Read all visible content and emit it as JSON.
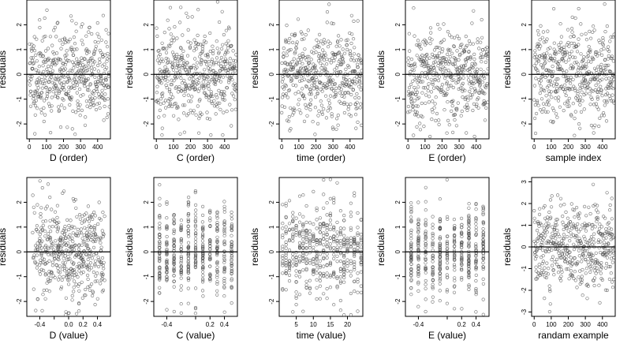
{
  "colors": {
    "points": "#555555",
    "frame": "#000000",
    "zero_line": "#000000"
  },
  "chart_data": [
    {
      "type": "scatter",
      "xlabel": "D (order)",
      "ylabel": "residuals",
      "xticks": [
        0,
        100,
        200,
        300,
        400
      ],
      "xlim": [
        -15,
        475
      ],
      "yticks": [
        -2,
        -1,
        0,
        1,
        2
      ],
      "ylim": [
        -2.6,
        3.0
      ],
      "zero_line": true,
      "n_points": 470,
      "x_kind": "index",
      "seed": 11,
      "sd": 0.95
    },
    {
      "type": "scatter",
      "xlabel": "C (order)",
      "ylabel": "residuals",
      "xticks": [
        0,
        100,
        200,
        300,
        400
      ],
      "xlim": [
        -15,
        475
      ],
      "yticks": [
        -2,
        -1,
        0,
        1,
        2
      ],
      "ylim": [
        -2.6,
        3.0
      ],
      "zero_line": true,
      "n_points": 470,
      "x_kind": "index",
      "seed": 12,
      "sd": 0.95
    },
    {
      "type": "scatter",
      "xlabel": "time (order)",
      "ylabel": "residuals",
      "xticks": [
        0,
        100,
        200,
        300,
        400
      ],
      "xlim": [
        -15,
        475
      ],
      "yticks": [
        -2,
        -1,
        0,
        1,
        2
      ],
      "ylim": [
        -2.6,
        3.0
      ],
      "zero_line": true,
      "n_points": 470,
      "x_kind": "index",
      "seed": 13,
      "sd": 0.95
    },
    {
      "type": "scatter",
      "xlabel": "E (order)",
      "ylabel": "residuals",
      "xticks": [
        0,
        100,
        200,
        300,
        400
      ],
      "xlim": [
        -15,
        475
      ],
      "yticks": [
        -2,
        -1,
        0,
        1,
        2
      ],
      "ylim": [
        -2.6,
        3.0
      ],
      "zero_line": true,
      "n_points": 470,
      "x_kind": "index",
      "seed": 14,
      "sd": 0.95
    },
    {
      "type": "scatter",
      "xlabel": "sample index",
      "ylabel": "residuals",
      "xticks": [
        0,
        100,
        200,
        300,
        400
      ],
      "xlim": [
        -15,
        475
      ],
      "yticks": [
        -2,
        -1,
        0,
        1,
        2
      ],
      "ylim": [
        -2.6,
        3.0
      ],
      "zero_line": true,
      "n_points": 470,
      "x_kind": "index",
      "seed": 15,
      "sd": 0.95
    },
    {
      "type": "scatter",
      "xlabel": "D (value)",
      "ylabel": "residuals",
      "xticks": [
        -0.4,
        -0.2,
        0.0,
        0.2,
        0.4
      ],
      "xtick_labels": [
        "-0.4",
        "",
        "0.0",
        "0.2",
        "0.4"
      ],
      "xlim": [
        -0.58,
        0.58
      ],
      "yticks": [
        -2,
        -1,
        0,
        1,
        2
      ],
      "ylim": [
        -2.6,
        3.0
      ],
      "zero_line": true,
      "n_points": 470,
      "x_kind": "uniform",
      "x_range": [
        -0.5,
        0.5
      ],
      "seed": 21,
      "sd": 0.95
    },
    {
      "type": "scatter",
      "xlabel": "C (value)",
      "ylabel": "residuals",
      "xticks": [
        -0.4,
        0.0,
        0.2,
        0.4
      ],
      "xtick_labels": [
        "-0.4",
        "",
        "0.2",
        "0.4"
      ],
      "xlim": [
        -0.58,
        0.58
      ],
      "yticks": [
        -2,
        -1,
        0,
        1,
        2
      ],
      "ylim": [
        -2.6,
        3.0
      ],
      "zero_line": true,
      "n_points": 470,
      "x_kind": "discrete",
      "x_levels": [
        -0.5,
        -0.4,
        -0.3,
        -0.2,
        -0.1,
        0.0,
        0.1,
        0.2,
        0.3,
        0.4,
        0.5
      ],
      "seed": 22,
      "sd": 0.95
    },
    {
      "type": "scatter",
      "xlabel": "time (value)",
      "ylabel": "residuals",
      "xticks": [
        5,
        10,
        15,
        20
      ],
      "xlim": [
        0,
        24.5
      ],
      "yticks": [
        -2,
        -1,
        0,
        1,
        2
      ],
      "ylim": [
        -2.6,
        3.0
      ],
      "zero_line": true,
      "n_points": 470,
      "x_kind": "discrete",
      "x_levels": [
        1,
        2,
        3,
        4,
        5,
        6,
        7,
        8,
        9,
        10,
        11,
        12,
        13,
        14,
        15,
        16,
        17,
        18,
        19,
        20,
        21,
        22,
        23,
        24
      ],
      "seed": 23,
      "sd": 0.95
    },
    {
      "type": "scatter",
      "xlabel": "E (value)",
      "ylabel": "residuals",
      "xticks": [
        -0.4,
        0.0,
        0.2,
        0.4
      ],
      "xtick_labels": [
        "-0.4",
        "",
        "0.2",
        "0.4"
      ],
      "xlim": [
        -0.58,
        0.58
      ],
      "yticks": [
        -2,
        -1,
        0,
        1,
        2
      ],
      "ylim": [
        -2.6,
        3.0
      ],
      "zero_line": true,
      "n_points": 470,
      "x_kind": "discrete",
      "x_levels": [
        -0.5,
        -0.4,
        -0.3,
        -0.2,
        -0.1,
        0.0,
        0.1,
        0.2,
        0.3,
        0.4,
        0.5
      ],
      "seed": 24,
      "sd": 0.95
    },
    {
      "type": "scatter",
      "xlabel": "randam example",
      "ylabel": "residuals",
      "xticks": [
        0,
        100,
        200,
        300,
        400
      ],
      "xlim": [
        -15,
        475
      ],
      "yticks": [
        -3,
        -2,
        -1,
        0,
        1,
        2,
        3
      ],
      "ylim": [
        -3.2,
        3.2
      ],
      "zero_line": true,
      "n_points": 470,
      "x_kind": "index",
      "seed": 30,
      "sd": 1.0
    }
  ]
}
